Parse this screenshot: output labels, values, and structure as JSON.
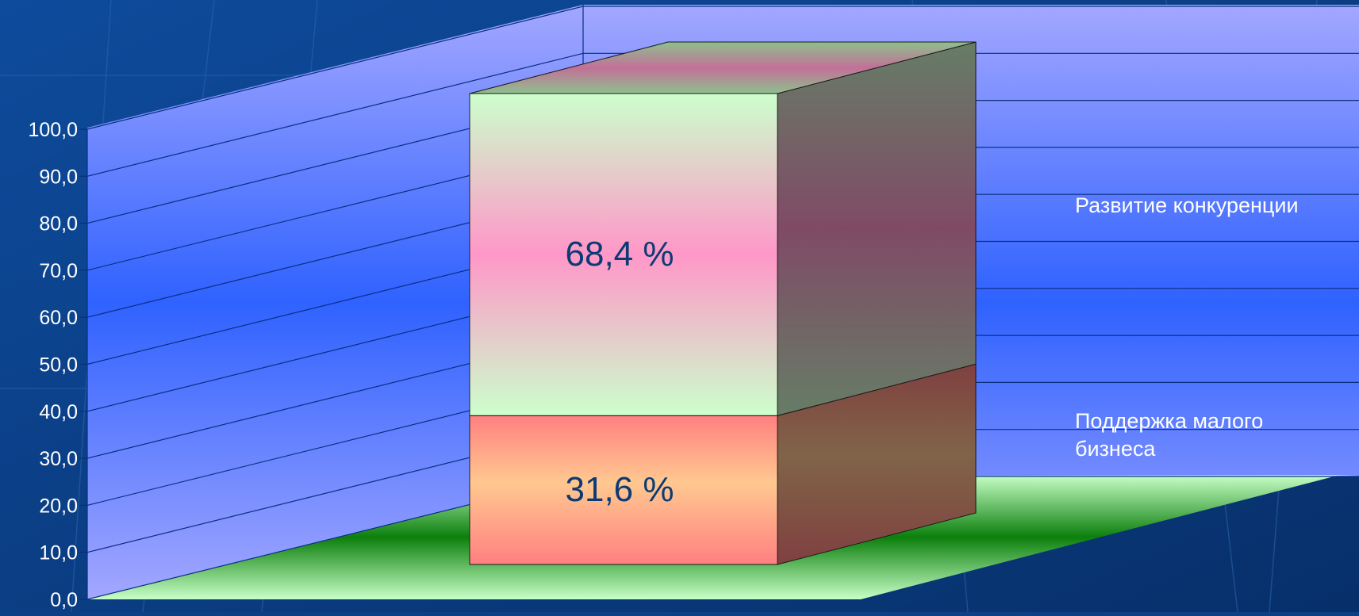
{
  "chart_data": {
    "type": "bar",
    "stacked": true,
    "three_d": true,
    "categories": [
      ""
    ],
    "series": [
      {
        "name": "Поддержка малого бизнеса",
        "values": [
          31.6
        ],
        "label": "31,6 %"
      },
      {
        "name": "Развитие конкуренции",
        "values": [
          68.4
        ],
        "label": "68,4 %"
      }
    ],
    "yticks": [
      "0,0",
      "10,0",
      "20,0",
      "30,0",
      "40,0",
      "50,0",
      "60,0",
      "70,0",
      "80,0",
      "90,0",
      "100,0"
    ],
    "ylim": [
      0,
      100
    ],
    "grid": true,
    "legend_position": "right"
  },
  "colors": {
    "background": "#0b3f86",
    "wall_light": "#a3a7ff",
    "wall_dark": "#2f62ff",
    "floor_light": "#c8ffc8",
    "floor_dark": "#0c7f0c",
    "bar_top_light": "#ccffcc",
    "bar_top_mid": "#ff97c8",
    "bar_bottom_light": "#ffc890",
    "bar_bottom_edge": "#ff8080",
    "label_text": "#0c3a73",
    "tick_text": "#ffffff"
  }
}
